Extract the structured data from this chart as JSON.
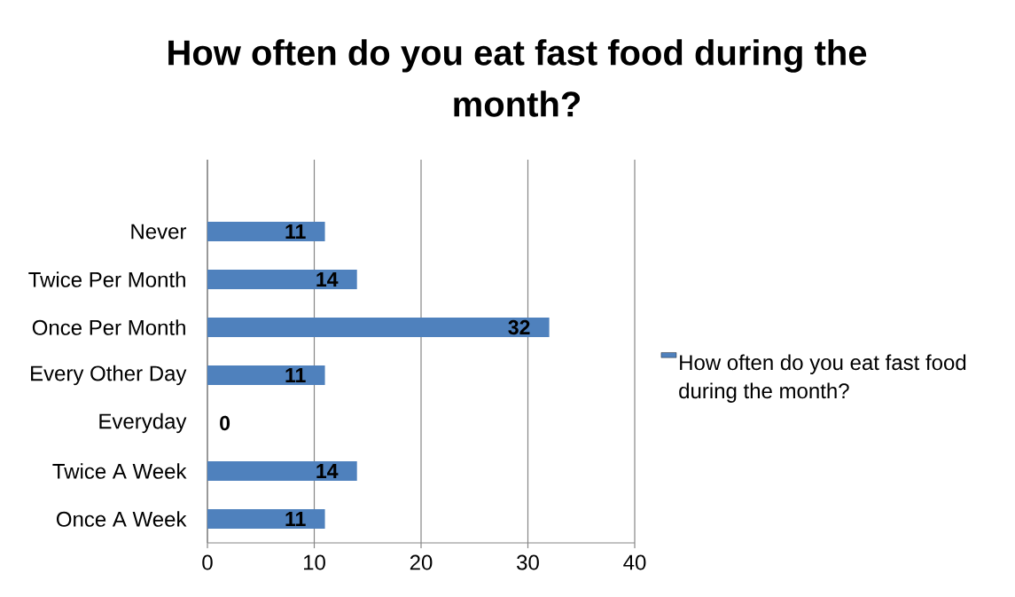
{
  "chart_data": {
    "type": "bar",
    "orientation": "horizontal",
    "title": "How often do you eat fast food during the month?",
    "categories": [
      null,
      "Never",
      "Twice Per Month",
      "Once Per Month",
      "Every Other Day",
      "Everyday",
      "Twice A Week",
      "Once A Week"
    ],
    "series": [
      {
        "name": "How often do you eat fast food during the month?",
        "color": "#4f81bd",
        "values": [
          null,
          11,
          14,
          32,
          11,
          0,
          14,
          11
        ]
      }
    ],
    "xlim": [
      0,
      40
    ],
    "xticks": [
      0,
      10,
      20,
      30,
      40
    ],
    "grid": "x",
    "legend": "right",
    "data_labels": true
  }
}
